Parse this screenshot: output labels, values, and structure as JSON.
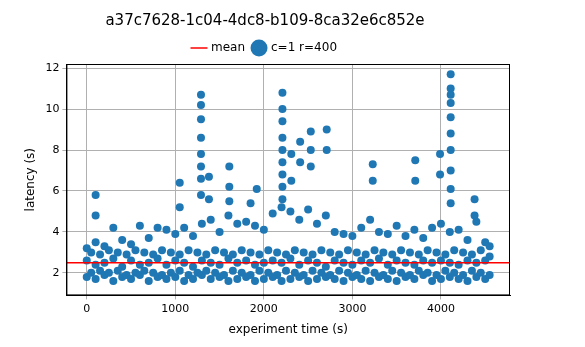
{
  "chart_data": {
    "type": "scatter",
    "title": "a37c7628-1c04-4dc8-b109-8ca32e6c852e",
    "x_label": "experiment time (s)",
    "y_label": "latency (s)",
    "xlim": [
      -230,
      4780
    ],
    "ylim": [
      0.9,
      12.2
    ],
    "xticks": [
      0,
      1000,
      2000,
      3000,
      4000
    ],
    "yticks": [
      2,
      4,
      6,
      8,
      10,
      12
    ],
    "grid": true,
    "legend": "upper center",
    "series": [
      {
        "name": "mean",
        "type": "line",
        "color": "red",
        "line_style": "solid",
        "x": [
          -230,
          4780
        ],
        "values": [
          2.5,
          2.5
        ]
      },
      {
        "name": "c=1 r=400",
        "type": "scatter",
        "color": "#1f77b4",
        "marker": "o",
        "x": [
          0,
          0,
          0,
          50,
          50,
          100,
          100,
          100,
          100,
          100,
          150,
          150,
          200,
          200,
          200,
          250,
          250,
          300,
          300,
          300,
          350,
          350,
          400,
          400,
          400,
          450,
          450,
          500,
          500,
          500,
          550,
          550,
          600,
          600,
          600,
          650,
          650,
          700,
          700,
          700,
          750,
          750,
          800,
          800,
          800,
          850,
          850,
          900,
          900,
          900,
          950,
          950,
          1000,
          1000,
          1000,
          1050,
          1050,
          1050,
          1050,
          1100,
          1100,
          1100,
          1150,
          1150,
          1200,
          1200,
          1200,
          1250,
          1250,
          1290,
          1290,
          1290,
          1290,
          1290,
          1290,
          1290,
          1290,
          1300,
          1300,
          1300,
          1350,
          1350,
          1380,
          1380,
          1400,
          1400,
          1400,
          1450,
          1450,
          1500,
          1500,
          1500,
          1550,
          1550,
          1600,
          1600,
          1600,
          1610,
          1610,
          1610,
          1650,
          1650,
          1700,
          1700,
          1700,
          1750,
          1750,
          1800,
          1800,
          1800,
          1850,
          1850,
          1850,
          1900,
          1900,
          1900,
          1920,
          1950,
          1950,
          2000,
          2000,
          2000,
          2050,
          2050,
          2100,
          2100,
          2100,
          2150,
          2150,
          2200,
          2200,
          2200,
          2210,
          2210,
          2210,
          2210,
          2210,
          2210,
          2210,
          2210,
          2210,
          2250,
          2250,
          2300,
          2300,
          2300,
          2310,
          2310,
          2350,
          2350,
          2400,
          2400,
          2400,
          2410,
          2410,
          2450,
          2450,
          2500,
          2500,
          2500,
          2530,
          2530,
          2530,
          2550,
          2550,
          2600,
          2600,
          2600,
          2650,
          2650,
          2700,
          2700,
          2700,
          2710,
          2710,
          2750,
          2750,
          2800,
          2800,
          2800,
          2850,
          2850,
          2900,
          2900,
          2900,
          2950,
          2950,
          3000,
          3000,
          3000,
          3050,
          3050,
          3100,
          3100,
          3100,
          3150,
          3150,
          3200,
          3200,
          3200,
          3230,
          3230,
          3250,
          3250,
          3300,
          3300,
          3300,
          3350,
          3350,
          3400,
          3400,
          3400,
          3450,
          3450,
          3500,
          3500,
          3500,
          3550,
          3550,
          3600,
          3600,
          3600,
          3650,
          3650,
          3700,
          3700,
          3700,
          3710,
          3710,
          3750,
          3750,
          3800,
          3800,
          3800,
          3850,
          3850,
          3900,
          3900,
          3900,
          3950,
          3950,
          3990,
          3990,
          4000,
          4000,
          4000,
          4050,
          4050,
          4100,
          4100,
          4100,
          4110,
          4110,
          4110,
          4110,
          4110,
          4110,
          4110,
          4110,
          4110,
          4110,
          4150,
          4150,
          4200,
          4200,
          4200,
          4250,
          4250,
          4300,
          4300,
          4300,
          4350,
          4350,
          4380,
          4380,
          4400,
          4400,
          4400,
          4450,
          4450,
          4500,
          4500,
          4500,
          4550,
          4550,
          4550
        ],
        "values": [
          1.8,
          2.6,
          3.2,
          2.0,
          3.0,
          1.7,
          2.4,
          3.5,
          5.8,
          4.8,
          2.1,
          2.9,
          1.9,
          2.5,
          3.3,
          2.0,
          3.1,
          1.6,
          2.7,
          4.2,
          2.1,
          3.0,
          1.8,
          2.3,
          3.6,
          1.9,
          2.9,
          1.7,
          2.6,
          3.4,
          2.0,
          3.1,
          1.9,
          2.4,
          4.3,
          2.1,
          3.0,
          1.6,
          2.5,
          3.7,
          2.0,
          2.9,
          1.8,
          2.7,
          4.2,
          1.9,
          3.1,
          1.7,
          2.4,
          4.1,
          2.0,
          3.0,
          1.8,
          2.6,
          3.9,
          6.4,
          5.2,
          2.1,
          2.9,
          1.6,
          2.5,
          4.2,
          1.9,
          3.1,
          1.7,
          2.3,
          3.8,
          2.0,
          3.0,
          10.7,
          10.2,
          9.5,
          8.6,
          7.8,
          7.2,
          6.6,
          5.8,
          1.9,
          2.6,
          4.4,
          2.1,
          2.9,
          6.7,
          5.6,
          1.7,
          2.5,
          4.6,
          2.0,
          3.1,
          1.8,
          2.4,
          4.0,
          1.9,
          3.0,
          1.6,
          2.7,
          4.8,
          7.2,
          6.2,
          5.5,
          2.1,
          2.9,
          1.7,
          2.5,
          4.4,
          2.0,
          3.1,
          1.8,
          2.6,
          4.5,
          5.4,
          1.9,
          3.0,
          1.6,
          2.4,
          4.3,
          6.1,
          2.1,
          2.9,
          1.7,
          2.5,
          4.1,
          2.0,
          3.1,
          1.8,
          2.6,
          4.9,
          1.9,
          3.0,
          1.6,
          2.5,
          5.2,
          10.8,
          10.0,
          9.4,
          8.6,
          8.0,
          7.4,
          6.8,
          6.2,
          5.6,
          2.1,
          2.9,
          1.7,
          2.7,
          5.0,
          7.8,
          6.5,
          2.0,
          3.1,
          1.8,
          2.4,
          4.6,
          8.4,
          7.4,
          1.9,
          3.0,
          1.6,
          2.6,
          5.1,
          8.9,
          8.0,
          7.2,
          2.1,
          2.9,
          1.7,
          2.5,
          4.4,
          2.0,
          3.1,
          1.8,
          2.3,
          4.8,
          9.0,
          8.0,
          1.9,
          3.0,
          1.7,
          2.6,
          4.0,
          2.1,
          2.9,
          1.6,
          2.5,
          3.9,
          2.0,
          3.1,
          1.8,
          2.4,
          3.8,
          1.9,
          3.0,
          1.7,
          2.6,
          4.2,
          2.1,
          2.9,
          1.6,
          2.5,
          4.6,
          7.3,
          6.5,
          2.0,
          3.1,
          1.8,
          2.7,
          4.0,
          1.9,
          3.0,
          1.7,
          2.4,
          3.9,
          2.1,
          2.9,
          1.6,
          2.6,
          4.3,
          2.0,
          3.1,
          1.8,
          2.5,
          3.8,
          1.9,
          3.0,
          1.7,
          2.4,
          4.1,
          7.5,
          6.5,
          2.1,
          2.9,
          1.9,
          2.6,
          3.7,
          2.0,
          3.1,
          1.6,
          2.5,
          4.2,
          1.9,
          3.0,
          7.8,
          6.8,
          1.7,
          2.6,
          4.4,
          2.1,
          2.9,
          1.8,
          2.5,
          4.0,
          11.7,
          11.0,
          10.7,
          10.3,
          9.6,
          8.8,
          8.0,
          7.0,
          6.1,
          5.4,
          2.0,
          3.1,
          1.7,
          2.4,
          4.1,
          1.9,
          3.0,
          1.6,
          2.6,
          3.6,
          2.1,
          2.9,
          5.6,
          4.8,
          1.8,
          2.5,
          4.5,
          2.0,
          3.1,
          1.7,
          2.6,
          3.5,
          1.9,
          2.8,
          3.3
        ]
      }
    ]
  }
}
